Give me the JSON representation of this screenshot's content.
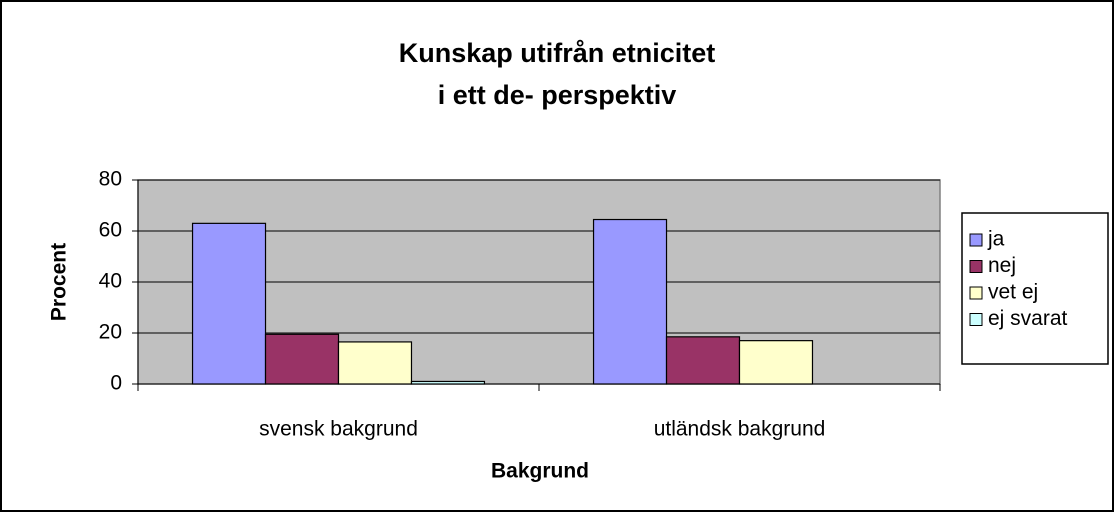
{
  "chart_data": {
    "type": "bar",
    "title": [
      "Kunskap utifrån etnicitet",
      "i ett de- perspektiv"
    ],
    "x_label": "Bakgrund",
    "y_label": "Procent",
    "categories": [
      "svensk bakgrund",
      "utländsk bakgrund"
    ],
    "series": [
      {
        "name": "ja",
        "color": "#9999ff",
        "values": [
          63,
          64.5
        ]
      },
      {
        "name": "nej",
        "color": "#993366",
        "values": [
          19.5,
          18.5
        ]
      },
      {
        "name": "vet ej",
        "color": "#ffffcc",
        "values": [
          16.5,
          17
        ]
      },
      {
        "name": "ej svarat",
        "color": "#ccffff",
        "values": [
          1,
          0
        ]
      }
    ],
    "ylim": [
      0,
      80
    ],
    "yticks": [
      0,
      20,
      40,
      60,
      80
    ],
    "grid": true,
    "plot_background": "#c0c0c0",
    "legend": "right"
  }
}
